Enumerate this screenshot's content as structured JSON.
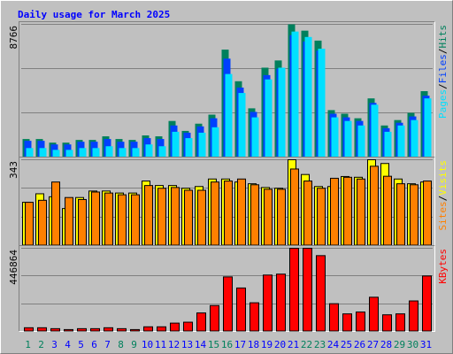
{
  "chart_data": {
    "type": "bar",
    "title": "Daily usage for March 2025",
    "categories": [
      "1",
      "2",
      "3",
      "4",
      "5",
      "6",
      "7",
      "8",
      "9",
      "10",
      "11",
      "12",
      "13",
      "14",
      "15",
      "16",
      "17",
      "18",
      "19",
      "20",
      "21",
      "22",
      "23",
      "24",
      "25",
      "26",
      "27",
      "28",
      "29",
      "30",
      "31"
    ],
    "category_colors": [
      "#00805c",
      "#00805c",
      "#0000ff",
      "#0000ff",
      "#0000ff",
      "#0000ff",
      "#0000ff",
      "#00805c",
      "#00805c",
      "#0000ff",
      "#0000ff",
      "#0000ff",
      "#0000ff",
      "#0000ff",
      "#00805c",
      "#00805c",
      "#0000ff",
      "#0000ff",
      "#0000ff",
      "#0000ff",
      "#0000ff",
      "#00805c",
      "#00805c",
      "#0000ff",
      "#0000ff",
      "#0000ff",
      "#0000ff",
      "#0000ff",
      "#00805c",
      "#00805c",
      "#0000ff"
    ],
    "legend_separator": "/",
    "panels": [
      {
        "ylim": [
          0,
          8766
        ],
        "yticks": [
          8766
        ],
        "series": [
          {
            "name": "Pages",
            "color": "#00e0ff",
            "values": [
              596,
              596,
              477,
              477,
              596,
              596,
              716,
              596,
              596,
              835,
              716,
              1670,
              1252,
              1610,
              1968,
              5486,
              4233,
              2624,
              5129,
              5903,
              8289,
              7931,
              7156,
              2624,
              2385,
              2087,
              3459,
              1670,
              2087,
              2445,
              3876
            ]
          },
          {
            "name": "Files",
            "color": "#0040ff",
            "values": [
              1073,
              1073,
              835,
              835,
              1013,
              1013,
              1193,
              1013,
              1013,
              1252,
              1193,
              2087,
              1610,
              2027,
              2564,
              6500,
              4590,
              2982,
              5413,
              5845,
              8050,
              7633,
              7030,
              2862,
              2624,
              2385,
              3578,
              1908,
              2266,
              2684,
              4055
            ]
          },
          {
            "name": "Hits",
            "color": "#00805c",
            "values": [
              1193,
              1193,
              954,
              954,
              1133,
              1133,
              1371,
              1193,
              1133,
              1431,
              1371,
              2385,
              1729,
              2206,
              2803,
              7096,
              5009,
              3220,
              5904,
              6381,
              8766,
              8348,
              7692,
              3101,
              2862,
              2564,
              3876,
              2087,
              2445,
              2922,
              4353
            ]
          }
        ]
      },
      {
        "ylim": [
          0,
          343
        ],
        "yticks": [
          343
        ],
        "series": [
          {
            "name": "Sites",
            "color": "#ff8000",
            "values": [
              173,
              181,
              254,
              192,
              184,
              214,
              210,
              203,
              203,
              240,
              229,
              232,
              221,
              221,
              254,
              258,
              266,
              243,
              225,
              225,
              306,
              258,
              229,
              269,
              273,
              266,
              317,
              277,
              247,
              243,
              258
            ]
          },
          {
            "name": "Visits",
            "color": "#ffff00",
            "values": [
              173,
              207,
              195,
              148,
              192,
              218,
              218,
              210,
              210,
              258,
              240,
              240,
              229,
              236,
              266,
              266,
              254,
              247,
              232,
              229,
              343,
              284,
              236,
              236,
              276,
              273,
              343,
              328,
              266,
              247,
              254
            ]
          }
        ]
      },
      {
        "ylim": [
          0,
          446864
        ],
        "yticks": [
          446864
        ],
        "series": [
          {
            "name": "KBytes",
            "color": "#ff0000",
            "values": [
              19861,
              19861,
              14896,
              9930,
              14896,
              14896,
              19861,
              14896,
              9930,
              24826,
              24826,
              44686,
              49652,
              99303,
              139024,
              292943,
              233362,
              153920,
              302873,
              307839,
              446864,
              446864,
              407143,
              148955,
              94338,
              104268,
              183711,
              89373,
              94338,
              163850,
              297909
            ]
          }
        ]
      }
    ]
  }
}
